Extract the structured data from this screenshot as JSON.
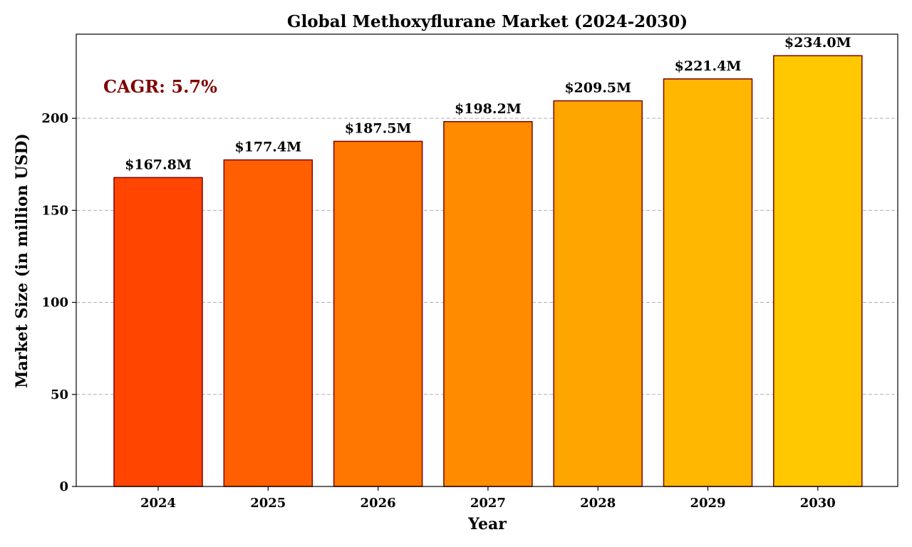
{
  "chart_data": {
    "type": "bar",
    "title": "Global Methoxyflurane Market (2024-2030)",
    "xlabel": "Year",
    "ylabel": "Market Size (in million USD)",
    "categories": [
      "2024",
      "2025",
      "2026",
      "2027",
      "2028",
      "2029",
      "2030"
    ],
    "values": [
      167.8,
      177.4,
      187.5,
      198.2,
      209.5,
      221.4,
      234.0
    ],
    "data_labels": [
      "$167.8M",
      "$177.4M",
      "$187.5M",
      "$198.2M",
      "$209.5M",
      "$221.4M",
      "$234.0M"
    ],
    "ylim": [
      0,
      245.7
    ],
    "yticks": [
      0,
      50,
      100,
      150,
      200
    ],
    "grid": "horizontal dashed",
    "bar_colors": [
      "#ff4500",
      "#ff5f00",
      "#ff7700",
      "#ff8c00",
      "#ffa500",
      "#ffb700",
      "#ffc800"
    ],
    "bar_edge_color": "#800000",
    "annotation": {
      "text": "CAGR: 5.7%",
      "color": "#800000",
      "placement": "top-left"
    }
  }
}
